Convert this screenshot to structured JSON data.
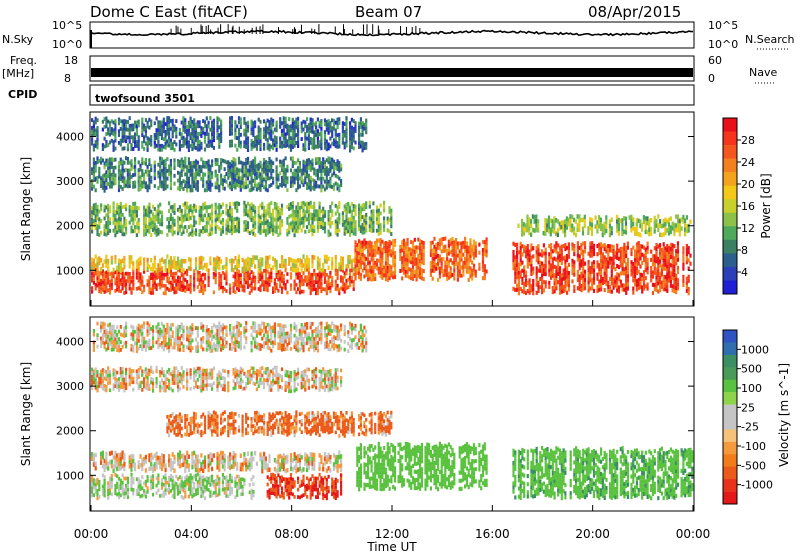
{
  "header": {
    "station": "Dome C East (fitACF)",
    "beam": "Beam 07",
    "date": "08/Apr/2015"
  },
  "strips": {
    "nsky_label": "N.Sky",
    "nsky_ticks": [
      "10^5",
      "10^0"
    ],
    "nsearch_label": "N.Search",
    "nsearch_ticks": [
      "10^5",
      "10^0"
    ],
    "freq_label": "Freq.",
    "freq_unit": "[MHz]",
    "freq_ticks": [
      "18",
      "8"
    ],
    "nave_label": "Nave",
    "nave_ticks": [
      "60",
      "0"
    ],
    "cpid_label": "CPID",
    "cpid_value": "twofsound 3501"
  },
  "power_colorbar": {
    "title": "Power [dB]",
    "ticks": [
      "28",
      "24",
      "20",
      "16",
      "12",
      "8",
      "4"
    ],
    "colors": [
      "#e8101a",
      "#f5341c",
      "#f4571d",
      "#f3801f",
      "#f3a31f",
      "#f3c819",
      "#c9cf2b",
      "#8cc24a",
      "#4fa95a",
      "#3d7f62",
      "#2c5f8c",
      "#2a3fb8",
      "#1f1fd6"
    ]
  },
  "velocity_colorbar": {
    "title": "Velocity [m s^-1]",
    "ticks": [
      "1000",
      "500",
      "100",
      "25",
      "-25",
      "-100",
      "-500",
      "-1000"
    ],
    "colors": [
      "#2e53c2",
      "#2f6fae",
      "#3c8f62",
      "#4a9a5a",
      "#5ac23f",
      "#8dd44a",
      "#c5c5c5",
      "#c5c5c5",
      "#f5c27a",
      "#f49a3d",
      "#f07c1a",
      "#ec5a19",
      "#e8321a",
      "#e31818"
    ]
  },
  "chart_data": [
    {
      "type": "heatmap",
      "panel": "power",
      "ylabel": "Slant Range [km]",
      "xlabel": "Time UT",
      "x_ticks": [
        "00:00",
        "04:00",
        "08:00",
        "12:00",
        "16:00",
        "20:00",
        "00:00"
      ],
      "y_ticks": [
        1000,
        2000,
        3000,
        4000
      ],
      "xlim_hours": [
        0,
        24
      ],
      "ylim_km": [
        200,
        4550
      ],
      "colorbar_ticks_db": [
        4,
        8,
        12,
        16,
        20,
        24,
        28
      ],
      "colorbar_range_db": [
        0,
        32
      ],
      "echo_bands": [
        {
          "t_start": 0.0,
          "t_end": 10.5,
          "range_km": [
            500,
            1000
          ],
          "power_db": 28
        },
        {
          "t_start": 0.0,
          "t_end": 10.5,
          "range_km": [
            1000,
            1300
          ],
          "power_db": 18
        },
        {
          "t_start": 10.5,
          "t_end": 15.8,
          "range_km": [
            800,
            1700
          ],
          "power_db": 26
        },
        {
          "t_start": 16.8,
          "t_end": 24.0,
          "range_km": [
            500,
            1600
          ],
          "power_db": 28
        },
        {
          "t_start": 0.0,
          "t_end": 12.0,
          "range_km": [
            1800,
            2500
          ],
          "power_db": 12
        },
        {
          "t_start": 17.0,
          "t_end": 24.0,
          "range_km": [
            1800,
            2200
          ],
          "power_db": 14
        },
        {
          "t_start": 0.0,
          "t_end": 10.0,
          "range_km": [
            2800,
            3500
          ],
          "power_db": 8
        },
        {
          "t_start": 0.0,
          "t_end": 11.0,
          "range_km": [
            3700,
            4400
          ],
          "power_db": 6
        }
      ]
    },
    {
      "type": "heatmap",
      "panel": "velocity",
      "ylabel": "Slant Range [km]",
      "xlabel": "Time UT",
      "x_ticks": [
        "00:00",
        "04:00",
        "08:00",
        "12:00",
        "16:00",
        "20:00",
        "00:00"
      ],
      "y_ticks": [
        1000,
        2000,
        3000,
        4000
      ],
      "xlim_hours": [
        0,
        24
      ],
      "ylim_km": [
        200,
        4550
      ],
      "colorbar_ticks_ms": [
        1000,
        500,
        100,
        25,
        -25,
        -100,
        -500,
        -1000
      ],
      "echo_bands": [
        {
          "t_start": 0.0,
          "t_end": 6.5,
          "range_km": [
            500,
            1000
          ],
          "velocity_ms": 100
        },
        {
          "t_start": 0.0,
          "t_end": 10.0,
          "range_km": [
            1100,
            1500
          ],
          "velocity_ms": 0
        },
        {
          "t_start": 7.0,
          "t_end": 10.0,
          "range_km": [
            500,
            1000
          ],
          "velocity_ms": -500
        },
        {
          "t_start": 10.5,
          "t_end": 15.8,
          "range_km": [
            700,
            1700
          ],
          "velocity_ms": 300
        },
        {
          "t_start": 16.8,
          "t_end": 24.0,
          "range_km": [
            500,
            1600
          ],
          "velocity_ms": 400
        },
        {
          "t_start": 3.0,
          "t_end": 12.0,
          "range_km": [
            1900,
            2400
          ],
          "velocity_ms": -150
        },
        {
          "t_start": 0.0,
          "t_end": 10.0,
          "range_km": [
            2900,
            3400
          ],
          "velocity_ms": 0
        },
        {
          "t_start": 0.0,
          "t_end": 11.0,
          "range_km": [
            3800,
            4400
          ],
          "velocity_ms": 0
        }
      ]
    }
  ]
}
